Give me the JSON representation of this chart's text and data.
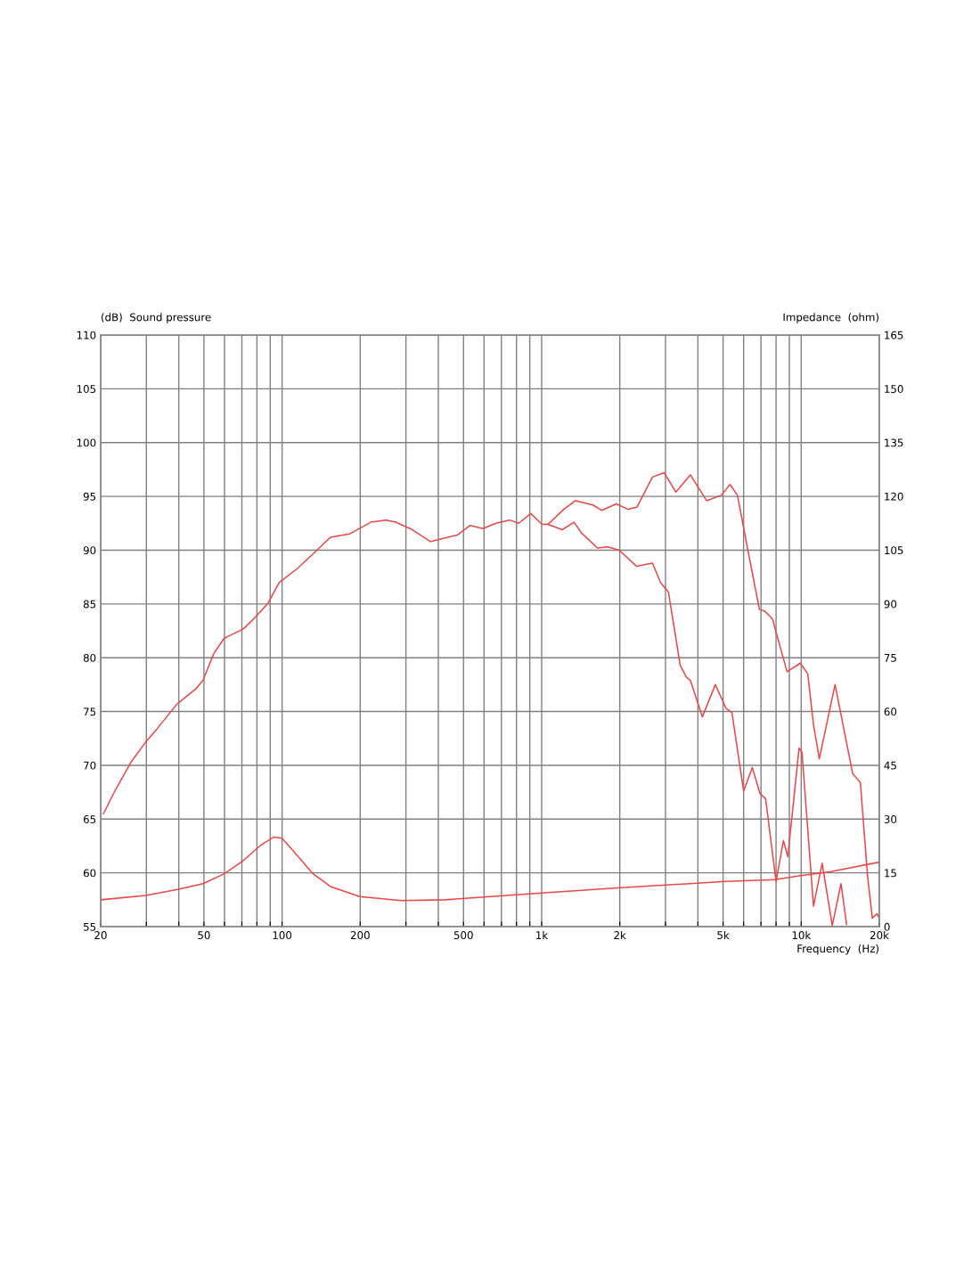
{
  "chart_data": {
    "type": "line",
    "ylabel": "(dB)  Sound pressure",
    "y2label": "Impedance  (ohm)",
    "xlabel": "Frequency  (Hz)",
    "log": "x",
    "grid": true,
    "line_style": "solid",
    "marker": "none",
    "xlim": [
      20,
      20000
    ],
    "xticks": [
      20,
      {
        "value": 30,
        "label": null
      },
      {
        "value": 40,
        "label": null
      },
      50,
      {
        "value": 60,
        "label": null
      },
      {
        "value": 70,
        "label": null
      },
      {
        "value": 80,
        "label": null
      },
      {
        "value": 90,
        "label": null
      },
      100,
      200,
      {
        "value": 300,
        "label": null
      },
      {
        "value": 400,
        "label": null
      },
      500,
      {
        "value": 600,
        "label": null
      },
      {
        "value": 700,
        "label": null
      },
      {
        "value": 800,
        "label": null
      },
      {
        "value": 900,
        "label": null
      },
      {
        "value": 1000,
        "label": "1k"
      },
      {
        "value": 2000,
        "label": "2k"
      },
      {
        "value": 3000,
        "label": null
      },
      {
        "value": 4000,
        "label": null
      },
      {
        "value": 5000,
        "label": "5k"
      },
      {
        "value": 6000,
        "label": null
      },
      {
        "value": 7000,
        "label": null
      },
      {
        "value": 8000,
        "label": null
      },
      {
        "value": 9000,
        "label": null
      },
      {
        "value": 10000,
        "label": "10k"
      },
      {
        "value": 20000,
        "label": "20k"
      }
    ],
    "ylim": [
      55,
      110
    ],
    "yticks": [
      55,
      60,
      65,
      70,
      75,
      80,
      85,
      90,
      95,
      100,
      105,
      110
    ],
    "y2lim": [
      0,
      165
    ],
    "y2ticks": [
      0,
      15,
      30,
      45,
      60,
      75,
      90,
      105,
      120,
      135,
      150,
      165
    ],
    "series": [
      {
        "color": "#e84848",
        "x": [
          20.5,
          22.9,
          26.2,
          29.7,
          33.0,
          39.4,
          46.5,
          49.6,
          54.6,
          59.8,
          71.1,
          79.1,
          87.9,
          97.6,
          114.6,
          130.9,
          153.6,
          181.7,
          219.6,
          251.6,
          273.8,
          318,
          373,
          473,
          530,
          594,
          667,
          751,
          816,
          908,
          1004,
          1058,
          1217,
          1350,
          1576,
          1705,
          1940,
          2150,
          2329,
          2673,
          2966,
          3290,
          3741,
          4321,
          4920,
          5320,
          5680,
          6220,
          6900,
          7270,
          7750,
          8820,
          9930,
          10600,
          11150,
          11740,
          13500,
          15800,
          16900,
          18000,
          18790,
          19580,
          20000
        ],
        "values": [
          65.5,
          67.8,
          70.3,
          72.1,
          73.4,
          75.7,
          77.1,
          77.9,
          80.4,
          81.8,
          82.7,
          83.8,
          85.0,
          87.0,
          88.3,
          89.6,
          91.2,
          91.5,
          92.6,
          92.8,
          92.6,
          91.9,
          90.8,
          91.4,
          92.3,
          92.0,
          92.5,
          92.8,
          92.5,
          93.4,
          92.4,
          92.4,
          93.8,
          94.6,
          94.2,
          93.7,
          94.3,
          93.8,
          94.0,
          96.8,
          97.2,
          95.4,
          97.0,
          94.6,
          95.1,
          96.1,
          95.1,
          90.1,
          84.5,
          84.3,
          83.6,
          78.7,
          79.5,
          78.5,
          73.8,
          70.6,
          77.5,
          69.2,
          68.4,
          59.8,
          55.8,
          56.2,
          55.8
        ]
      },
      {
        "color": "#e84848",
        "x": [
          1058,
          1200,
          1333,
          1424,
          1640,
          1795,
          1990,
          2323,
          2673,
          2870,
          3080,
          3418,
          3610,
          3740,
          4160,
          4670,
          5130,
          5410,
          6000,
          6480,
          6930,
          7290,
          8000,
          8540,
          8880,
          9810,
          10070,
          11150,
          12040,
          13170,
          14230,
          14960
        ],
        "values": [
          92.4,
          91.9,
          92.6,
          91.6,
          90.2,
          90.3,
          90.0,
          88.5,
          88.8,
          87.0,
          86.1,
          79.3,
          78.2,
          77.9,
          74.5,
          77.5,
          75.3,
          74.9,
          67.6,
          69.8,
          67.4,
          66.9,
          59.2,
          63.0,
          61.5,
          71.6,
          71.2,
          56.9,
          60.9,
          55.1,
          59.0,
          55.2
        ]
      },
      {
        "color": "#e84848",
        "axis": "y2",
        "x": [
          20,
          29.9,
          39.6,
          49.6,
          59.7,
          70,
          83,
          93,
          99.9,
          114.3,
          130.9,
          153.6,
          199,
          288,
          425,
          1000,
          2030,
          5130,
          7930,
          9810,
          12870,
          20000
        ],
        "values": [
          7.5,
          8.7,
          10.4,
          12.0,
          14.7,
          18.1,
          22.8,
          25.0,
          24.7,
          19.9,
          14.9,
          11.2,
          8.4,
          7.3,
          7.5,
          9.4,
          10.9,
          12.6,
          13.1,
          14.2,
          15.3,
          18.0
        ]
      }
    ]
  }
}
